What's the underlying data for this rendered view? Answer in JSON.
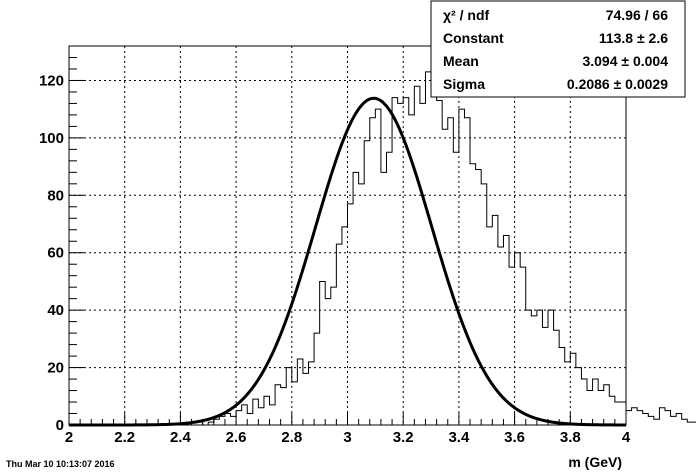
{
  "timestamp": "Thu Mar 10 10:13:07 2016",
  "stats": {
    "rows": [
      {
        "label": "χ² / ndf",
        "value": "74.96 / 66"
      },
      {
        "label": "Constant",
        "value": "113.8  ± 2.6"
      },
      {
        "label": "Mean",
        "value": "3.094  ± 0.004"
      },
      {
        "label": "Sigma",
        "value": "0.2086  ± 0.0029"
      }
    ]
  },
  "chart_data": {
    "type": "bar",
    "title": "",
    "xlabel": "m (GeV)",
    "ylabel": "",
    "xlim": [
      2,
      4
    ],
    "ylim": [
      0,
      132
    ],
    "grid": true,
    "x_ticks": [
      "2",
      "2.2",
      "2.4",
      "2.6",
      "2.8",
      "3",
      "3.2",
      "3.4",
      "3.6",
      "3.8",
      "4"
    ],
    "y_ticks": [
      "0",
      "20",
      "40",
      "60",
      "80",
      "100",
      "120"
    ],
    "bin_edges_start": 2.0,
    "bin_width": 0.02,
    "histogram_counts": [
      0,
      0,
      0,
      0,
      0,
      0,
      0,
      0,
      0,
      0,
      0,
      0,
      0,
      0,
      0,
      0,
      0,
      0,
      0,
      0,
      0,
      1,
      1,
      1,
      0,
      1,
      2,
      3,
      4,
      3,
      5,
      7,
      4,
      9,
      6,
      10,
      7,
      14,
      13,
      20,
      15,
      23,
      18,
      22,
      32,
      50,
      44,
      48,
      63,
      69,
      77,
      88,
      84,
      99,
      107,
      110,
      88,
      95,
      114,
      112,
      114,
      108,
      118,
      112,
      123,
      127,
      113,
      103,
      107,
      95,
      110,
      107,
      91,
      89,
      84,
      69,
      73,
      62,
      66,
      55,
      60,
      55,
      40,
      38,
      40,
      34,
      40,
      33,
      27,
      22,
      25,
      20,
      16,
      12,
      16,
      12,
      14,
      10,
      8,
      8,
      5,
      6,
      5,
      4,
      3,
      2,
      6,
      5,
      3,
      4,
      2,
      1,
      1,
      1,
      0,
      0,
      0,
      0,
      0,
      0
    ],
    "fit": {
      "function": "gaus",
      "constant": 113.8,
      "mean": 3.094,
      "sigma": 0.2086,
      "chi2": 74.96,
      "ndf": 66
    },
    "legend_placement": "top-right"
  }
}
